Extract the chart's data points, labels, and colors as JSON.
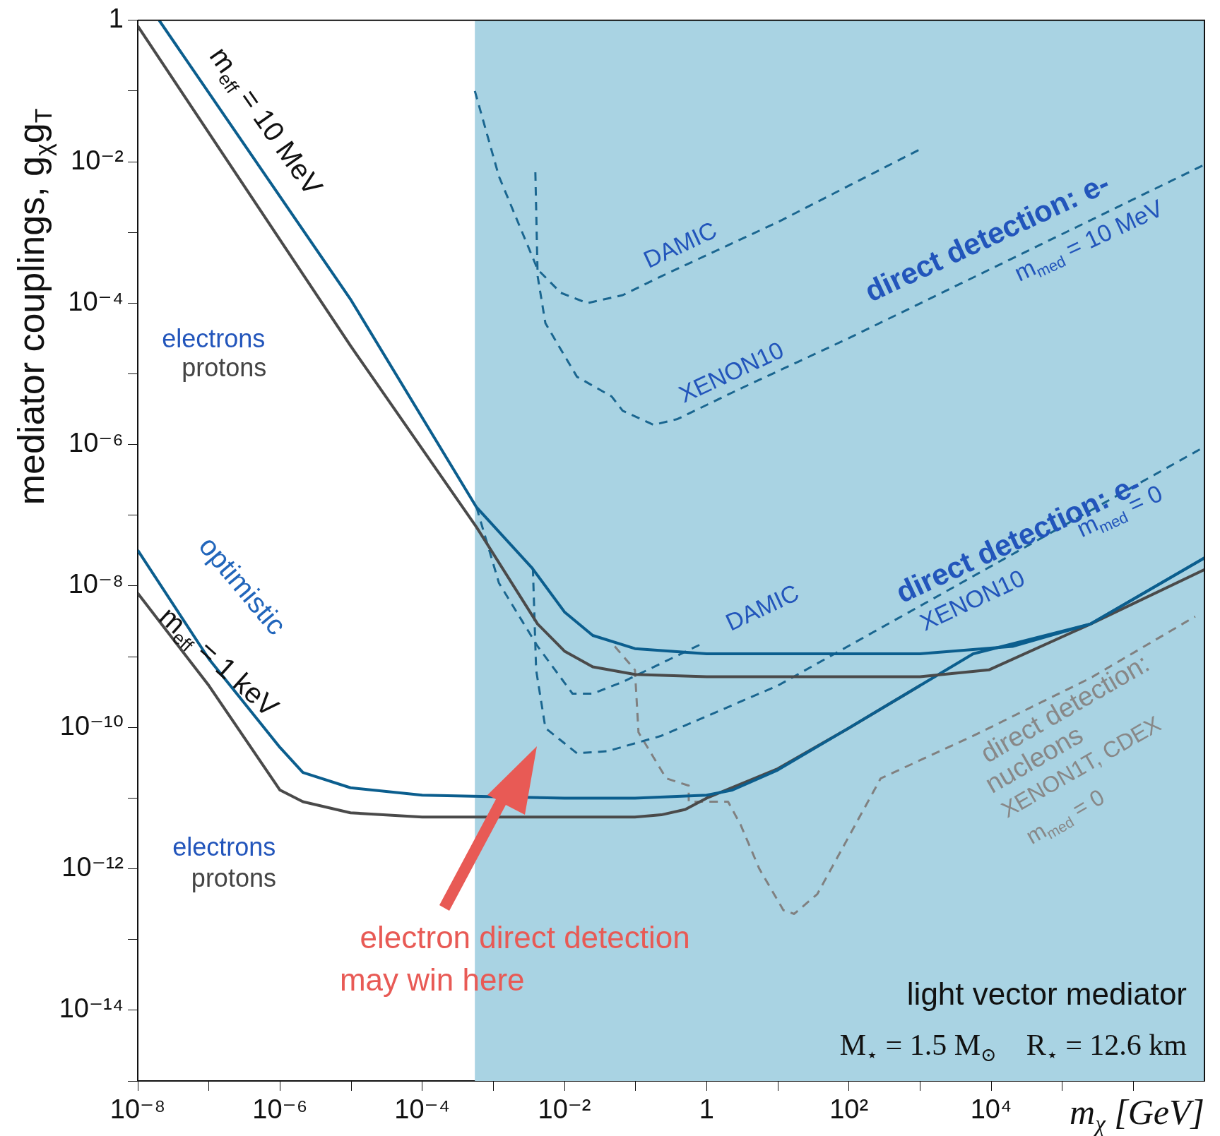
{
  "chart_data": {
    "type": "line",
    "xlabel": "m$_{χ}$ [GeV]",
    "ylabel": "mediator couplings, g$_{χ}$g$_{T}$",
    "log": "xy",
    "grid": false,
    "legend": false,
    "marker": "none",
    "xlim": [
      1e-08,
      10000000.0
    ],
    "ylim": [
      1e-15,
      1
    ],
    "xticks": [
      {
        "value": 1e-08,
        "label": "10⁻⁸"
      },
      {
        "value": 1e-07,
        "label": null
      },
      {
        "value": 1e-06,
        "label": "10⁻⁶"
      },
      {
        "value": 1e-05,
        "label": null
      },
      {
        "value": 0.0001,
        "label": "10⁻⁴"
      },
      {
        "value": 0.001,
        "label": null
      },
      {
        "value": 0.01,
        "label": "10⁻²"
      },
      {
        "value": 0.1,
        "label": null
      },
      1,
      {
        "value": 10,
        "label": null
      },
      {
        "value": 100,
        "label": "10²"
      },
      {
        "value": 1000,
        "label": null
      },
      {
        "value": 10000,
        "label": "10⁴"
      },
      {
        "value": 100000,
        "label": null
      },
      {
        "value": 1000000,
        "label": null
      }
    ],
    "yticks": [
      {
        "value": 1e-15,
        "label": null
      },
      {
        "value": 1e-14,
        "label": "10⁻¹⁴"
      },
      {
        "value": 1e-13,
        "label": null
      },
      {
        "value": 1e-12,
        "label": "10⁻¹²"
      },
      {
        "value": 1e-11,
        "label": null
      },
      {
        "value": 1e-10,
        "label": "10⁻¹⁰"
      },
      {
        "value": 1e-09,
        "label": null
      },
      {
        "value": 1e-08,
        "label": "10⁻⁸"
      },
      {
        "value": 1e-07,
        "label": null
      },
      {
        "value": 1e-06,
        "label": "10⁻⁶"
      },
      {
        "value": 1e-05,
        "label": null
      },
      {
        "value": 0.0001,
        "label": "10⁻⁴"
      },
      {
        "value": 0.001,
        "label": null
      },
      {
        "value": 0.01,
        "label": "10⁻²"
      },
      {
        "value": 0.1,
        "label": null
      },
      1
    ],
    "bands": [
      {
        "axis": "x",
        "from": 0.00055,
        "to": 10000000.0,
        "color": "#a9d3e3"
      }
    ],
    "series": [
      {
        "color": "#0b5e8e",
        "line_style": "solid",
        "x": [
          2e-08,
          1e-05,
          0.00058,
          0.0035,
          0.01,
          0.025,
          0.098,
          1,
          1000,
          20000.0,
          250000.0,
          10000000.0
        ],
        "values": [
          1,
          0.00011,
          1.3e-07,
          1.8e-08,
          4.3e-09,
          2e-09,
          1.3e-09,
          1.1e-09,
          1.1e-09,
          1.4e-09,
          2.9e-09,
          2.5e-08
        ]
      },
      {
        "color": "#4a4a4a",
        "line_style": "solid",
        "x": [
          1e-08,
          9.8e-06,
          0.00058,
          0.0042,
          0.01,
          0.025,
          0.098,
          1,
          1000,
          9300.0,
          250000.0,
          10000000.0
        ],
        "values": [
          0.83,
          2.5e-05,
          6.8e-08,
          2.9e-09,
          1.2e-09,
          7.2e-10,
          5.6e-10,
          5.2e-10,
          5.2e-10,
          6.5e-10,
          2.9e-09,
          1.7e-08
        ]
      },
      {
        "color": "#0b5e8e",
        "line_style": "solid",
        "x": [
          1e-08,
          1e-07,
          1e-06,
          2.1e-06,
          9.8e-06,
          0.0001,
          0.01,
          0.098,
          1,
          2.3,
          10,
          100,
          1000,
          5600.0,
          250000.0,
          10000000.0
        ],
        "values": [
          3.2e-08,
          9.3e-10,
          5.2e-11,
          2.3e-11,
          1.4e-11,
          1.1e-11,
          1e-11,
          1e-11,
          1.1e-11,
          1.3e-11,
          2.5e-11,
          9.8e-11,
          3.9e-10,
          1.1e-09,
          2.9e-09,
          2.5e-08
        ]
      },
      {
        "color": "#4a4a4a",
        "line_style": "solid",
        "x": [
          1e-08,
          1e-07,
          1e-06,
          2.1e-06,
          9.8e-06,
          0.0001,
          0.098,
          0.23,
          0.5,
          1,
          10,
          100,
          1000
        ],
        "values": [
          7.9e-09,
          3.9e-10,
          1.3e-11,
          8.9e-12,
          6.2e-12,
          5.4e-12,
          5.4e-12,
          5.8e-12,
          6.9e-12,
          1e-11,
          2.6e-11,
          9.8e-11,
          3.9e-10
        ]
      },
      {
        "color": "#1a6690",
        "line_style": "dashed",
        "x": [
          0.00055,
          0.0012,
          0.0042,
          0.0089,
          0.021,
          0.066,
          0.23,
          10,
          1000
        ],
        "values": [
          0.1,
          0.0062,
          0.0003,
          0.00014,
          0.0001,
          0.00013,
          0.00024,
          0.0014,
          0.015
        ]
      },
      {
        "color": "#1a6690",
        "line_style": "dashed",
        "x": [
          0.0039,
          0.0042,
          0.0054,
          0.015,
          0.046,
          0.066,
          0.18,
          0.39,
          3.0,
          100,
          10000000.0
        ],
        "values": [
          0.0071,
          0.00024,
          5.2e-05,
          9.1e-06,
          4.8e-06,
          3e-06,
          1.9e-06,
          2.3e-06,
          6.2e-06,
          3.2e-05,
          0.0091
        ]
      },
      {
        "color": "#1a6690",
        "line_style": "dashed",
        "x": [
          0.00058,
          0.0012,
          0.0042,
          0.013,
          0.025,
          0.066,
          0.83
        ],
        "values": [
          1.3e-07,
          1.1e-08,
          1.4e-09,
          3e-10,
          3e-10,
          4.4e-10,
          1.5e-09
        ]
      },
      {
        "color": "#1a6690",
        "line_style": "dashed",
        "x": [
          0.0036,
          0.004,
          0.0054,
          0.015,
          0.04,
          0.23,
          10,
          10000000.0
        ],
        "values": [
          1.8e-08,
          6.5e-10,
          9.8e-11,
          4.3e-11,
          4.6e-11,
          7.6e-11,
          3.9e-10,
          9.3e-07
        ]
      },
      {
        "color": "#808080",
        "line_style": "dashed",
        "x": [
          0.051,
          0.098,
          0.11,
          0.27,
          0.56,
          0.56,
          2.0,
          3.0,
          5.5,
          12,
          17,
          36,
          280,
          5600.0,
          250000.0,
          7400000.0
        ],
        "values": [
          1.4e-09,
          6.5e-10,
          8.5e-11,
          1.9e-11,
          1.5e-11,
          8.9e-12,
          8.9e-12,
          4.2e-12,
          1e-12,
          2.6e-13,
          2.3e-13,
          4.4e-13,
          1.9e-11,
          7.6e-11,
          5e-10,
          3.7e-09
        ]
      }
    ],
    "annotations": [
      "m$_{eff}$ = 10 MeV",
      "electrons",
      "protons",
      "optimistic",
      "m$_{eff}$ = 1 keV",
      "electrons",
      "protons",
      "DAMIC",
      "XENON10",
      "direct detection: e-",
      "m$_{med}$ = 10 MeV",
      "DAMIC",
      "XENON10",
      "direct detection: e-",
      "m$_{med}$ = 0",
      "direct detection:",
      "nucleons",
      "XENON1T, CDEX",
      "m$_{med}$ = 0",
      "electron direct detection",
      "may win here",
      "light vector mediator",
      "M$_{⋆}$ = 1.5 M$_{⊙}$    R$_{⋆}$ = 12.6 km"
    ]
  }
}
